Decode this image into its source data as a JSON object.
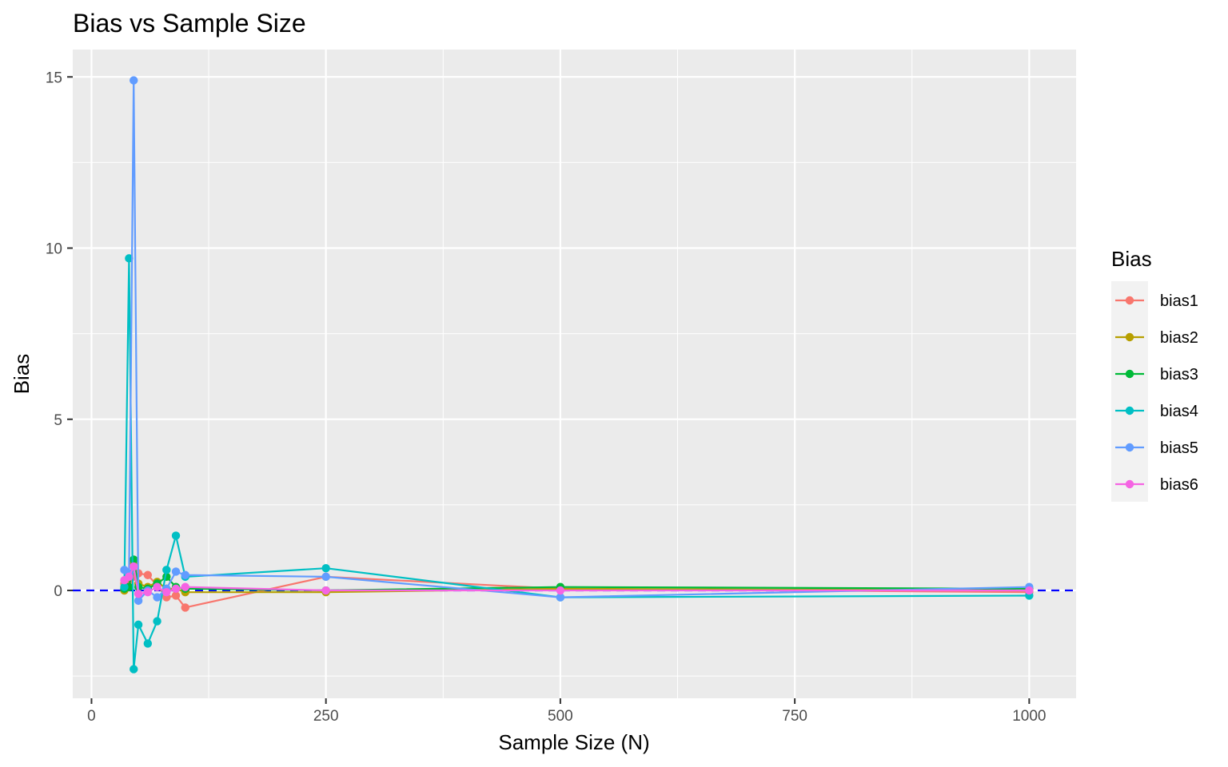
{
  "chart_data": {
    "type": "line",
    "title": "Bias vs Sample Size",
    "xlabel": "Sample Size (N)",
    "ylabel": "Bias",
    "xlim": [
      -20,
      1050
    ],
    "ylim": [
      -3.15,
      15.8
    ],
    "x_ticks": [
      0,
      250,
      500,
      750,
      1000
    ],
    "x_tick_labels": [
      "0",
      "250",
      "500",
      "750",
      "1000"
    ],
    "y_ticks": [
      0,
      5,
      10,
      15
    ],
    "y_tick_labels": [
      "0",
      "5",
      "10",
      "15"
    ],
    "grid": true,
    "reference_line": {
      "y": 0,
      "style": "dashed",
      "color": "#0000ff"
    },
    "legend": {
      "title": "Bias",
      "position": "right"
    },
    "x": [
      35,
      40,
      45,
      50,
      60,
      70,
      80,
      90,
      100,
      250,
      500,
      1000
    ],
    "series": [
      {
        "name": "bias1",
        "color": "#F8766D",
        "values": [
          0.2,
          0.3,
          0.4,
          0.5,
          0.45,
          0.15,
          -0.2,
          -0.15,
          -0.5,
          0.4,
          0.05,
          -0.05
        ]
      },
      {
        "name": "bias2",
        "color": "#B79F00",
        "values": [
          0.0,
          0.1,
          0.8,
          0.2,
          0.1,
          0.25,
          0.05,
          0.05,
          -0.05,
          -0.05,
          0.05,
          0.0
        ]
      },
      {
        "name": "bias3",
        "color": "#00BA38",
        "values": [
          0.05,
          0.1,
          0.9,
          0.1,
          0.05,
          0.2,
          0.4,
          0.1,
          0.05,
          0.0,
          0.1,
          0.05
        ]
      },
      {
        "name": "bias4",
        "color": "#00BFC4",
        "values": [
          0.1,
          9.7,
          -2.3,
          -1.0,
          -1.55,
          -0.9,
          0.6,
          1.6,
          0.4,
          0.65,
          -0.2,
          -0.15
        ]
      },
      {
        "name": "bias5",
        "color": "#619CFF",
        "values": [
          0.6,
          0.5,
          14.9,
          -0.3,
          0.0,
          -0.2,
          0.05,
          0.55,
          0.45,
          0.4,
          -0.2,
          0.1
        ]
      },
      {
        "name": "bias6",
        "color": "#F564E3",
        "values": [
          0.3,
          0.4,
          0.7,
          -0.1,
          -0.05,
          0.1,
          -0.05,
          0.05,
          0.1,
          0.0,
          0.0,
          0.0
        ]
      }
    ]
  }
}
